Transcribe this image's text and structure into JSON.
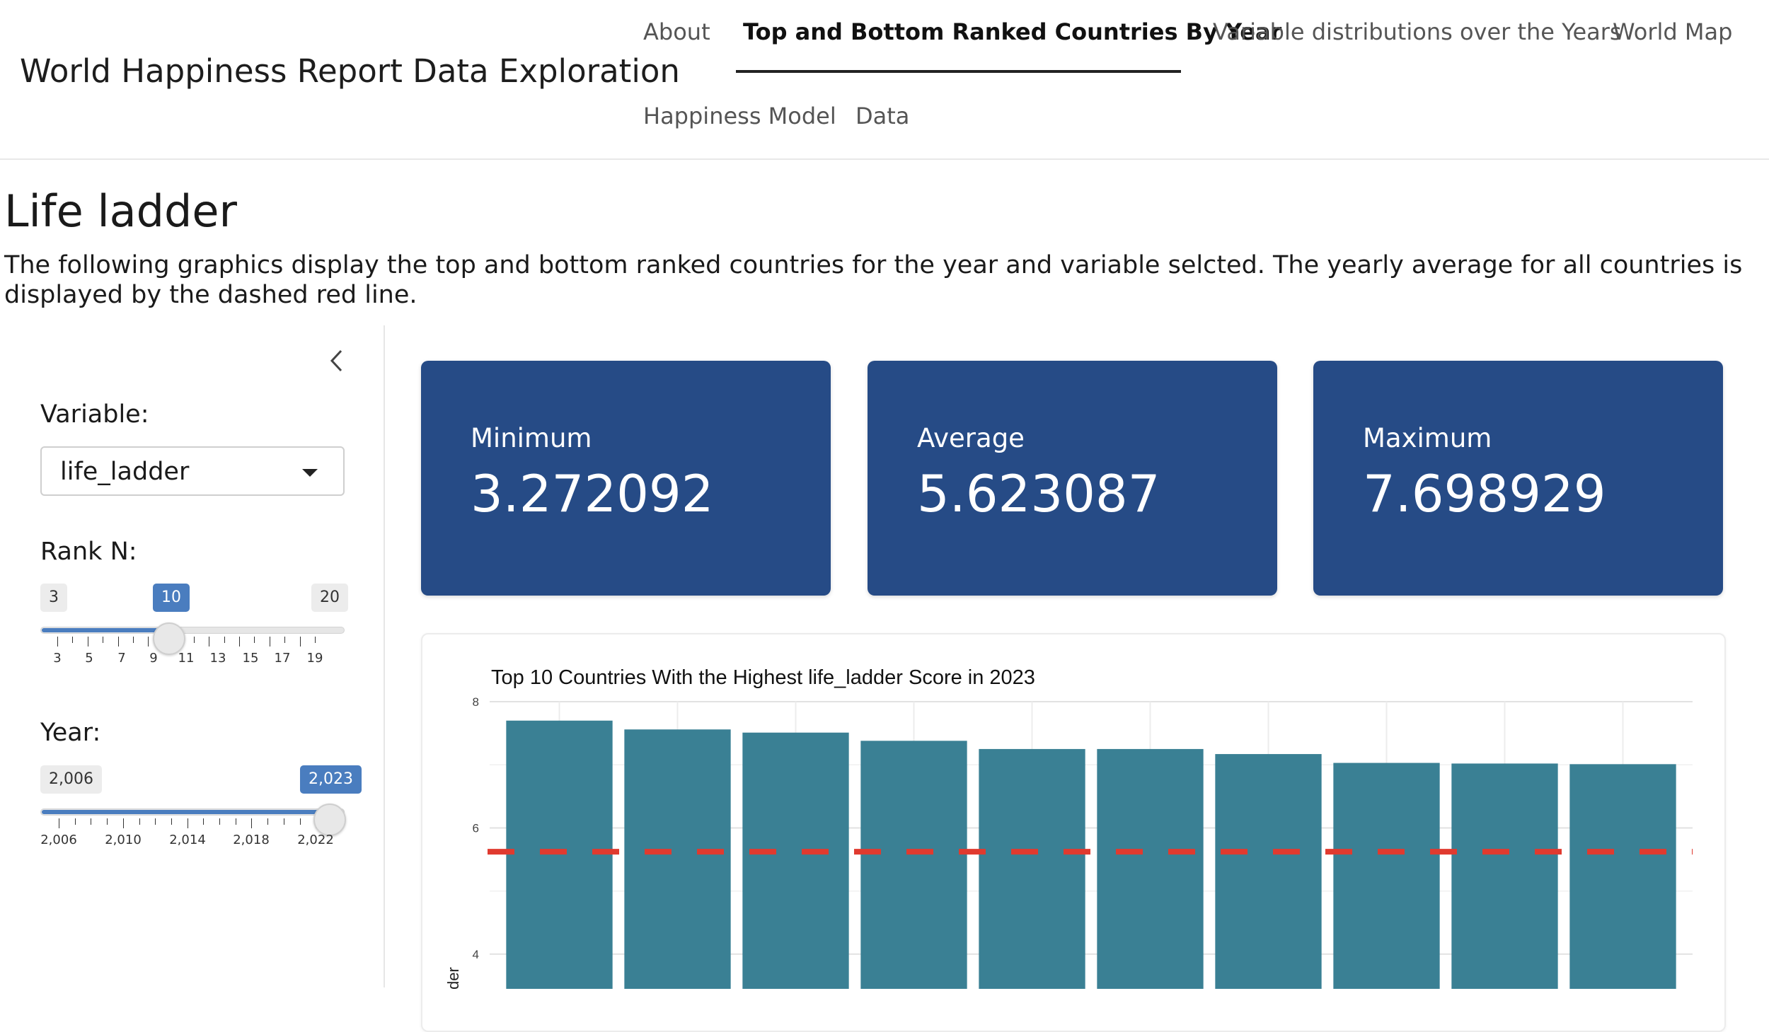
{
  "app": {
    "title": "World Happiness Report Data Exploration"
  },
  "nav": {
    "tabs": [
      {
        "label": "About",
        "active": false
      },
      {
        "label": "Top and Bottom Ranked Countries By Year",
        "active": true
      },
      {
        "label": "Variable distributions over the Years",
        "active": false
      },
      {
        "label": "World Map",
        "active": false
      },
      {
        "label": "Happiness Model",
        "active": false
      },
      {
        "label": "Data",
        "active": false
      }
    ]
  },
  "page": {
    "title": "Life ladder",
    "description": "The following graphics display the top and bottom ranked countries for the year and variable selcted. The yearly average for all countries is displayed by the dashed red line."
  },
  "sidebar": {
    "collapse_icon": "chevron-left-icon",
    "variable": {
      "label": "Variable:",
      "value": "life_ladder"
    },
    "rank": {
      "label": "Rank N:",
      "min_label": "3",
      "max_label": "20",
      "value_label": "10",
      "min": 3,
      "max": 20,
      "value": 10,
      "tick_labels": [
        "3",
        "5",
        "7",
        "9",
        "11",
        "13",
        "15",
        "17",
        "19"
      ]
    },
    "year": {
      "label": "Year:",
      "min_label": "2,006",
      "value_label": "2,023",
      "min": 2006,
      "max": 2023,
      "value": 2023,
      "tick_labels": [
        "2,006",
        "2,010",
        "2,014",
        "2,018",
        "2,022"
      ]
    }
  },
  "stats": {
    "minimum": {
      "label": "Minimum",
      "value": "3.272092"
    },
    "average": {
      "label": "Average",
      "value": "5.623087"
    },
    "maximum": {
      "label": "Maximum",
      "value": "7.698929"
    }
  },
  "colors": {
    "value_box": "#264b86",
    "bar": "#3a8094",
    "average_line": "#e03a2f",
    "slider_accent": "#4a7dbf"
  },
  "chart_data": {
    "type": "bar",
    "title": "Top 10 Countries With the Highest life_ladder Score in 2023",
    "ylabel": "life_ladder",
    "xlabel": "",
    "ylim": [
      3.45,
      8.0
    ],
    "yticks": [
      "4",
      "6",
      "8"
    ],
    "values": [
      7.7,
      7.56,
      7.51,
      7.38,
      7.25,
      7.25,
      7.17,
      7.03,
      7.02,
      7.01
    ],
    "average_line": 5.623087,
    "grid": true
  }
}
